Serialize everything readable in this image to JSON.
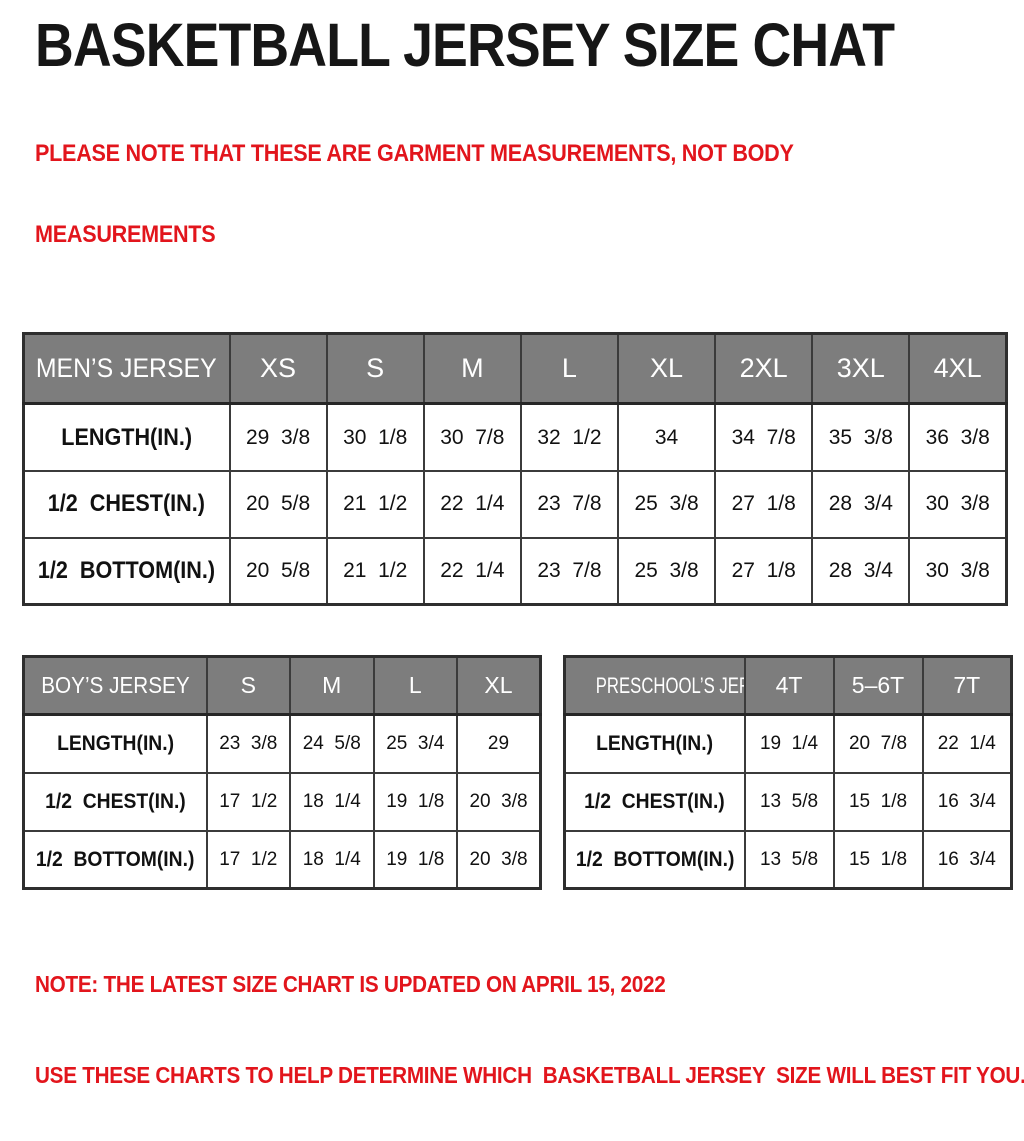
{
  "header": {
    "title": "BASKETBALL JERSEY SIZE CHAT",
    "subtitle_line1": "PLEASE NOTE THAT THESE ARE GARMENT MEASUREMENTS, NOT BODY",
    "subtitle_line2": "MEASUREMENTS"
  },
  "tables": {
    "mens": {
      "header": [
        "MEN’S JERSEY",
        "XS",
        "S",
        "M",
        "L",
        "XL",
        "2XL",
        "3XL",
        "4XL"
      ],
      "rows": [
        {
          "label": "LENGTH(IN.)",
          "values": [
            "29  3/8",
            "30  1/8",
            "30  7/8",
            "32  1/2",
            "34",
            "34  7/8",
            "35  3/8",
            "36  3/8"
          ]
        },
        {
          "label": "1/2  CHEST(IN.)",
          "values": [
            "20  5/8",
            "21  1/2",
            "22  1/4",
            "23  7/8",
            "25  3/8",
            "27  1/8",
            "28  3/4",
            "30  3/8"
          ]
        },
        {
          "label": "1/2  BOTTOM(IN.)",
          "values": [
            "20  5/8",
            "21  1/2",
            "22  1/4",
            "23  7/8",
            "25  3/8",
            "27  1/8",
            "28  3/4",
            "30  3/8"
          ]
        }
      ]
    },
    "boys": {
      "header": [
        "BOY’S JERSEY",
        "S",
        "M",
        "L",
        "XL"
      ],
      "rows": [
        {
          "label": "LENGTH(IN.)",
          "values": [
            "23  3/8",
            "24  5/8",
            "25  3/4",
            "29"
          ]
        },
        {
          "label": "1/2  CHEST(IN.)",
          "values": [
            "17  1/2",
            "18  1/4",
            "19  1/8",
            "20  3/8"
          ]
        },
        {
          "label": "1/2  BOTTOM(IN.)",
          "values": [
            "17  1/2",
            "18  1/4",
            "19  1/8",
            "20  3/8"
          ]
        }
      ]
    },
    "preschool": {
      "header": [
        "PRESCHOOL’S JERSEY",
        "4T",
        "5–6T",
        "7T"
      ],
      "rows": [
        {
          "label": "LENGTH(IN.)",
          "values": [
            "19  1/4",
            "20  7/8",
            "22  1/4"
          ]
        },
        {
          "label": "1/2  CHEST(IN.)",
          "values": [
            "13  5/8",
            "15  1/8",
            "16  3/4"
          ]
        },
        {
          "label": "1/2  BOTTOM(IN.)",
          "values": [
            "13  5/8",
            "15  1/8",
            "16  3/4"
          ]
        }
      ]
    }
  },
  "footer": {
    "note_line1": "NOTE: THE LATEST SIZE CHART IS UPDATED ON APRIL 15, 2022",
    "note_line2": "USE THESE CHARTS TO HELP DETERMINE WHICH  BASKETBALL JERSEY  SIZE WILL BEST FIT YOU."
  },
  "colors": {
    "accent_red": "#e2151c",
    "header_gray": "#7d7d7d",
    "grid_border": "#3b3b3b",
    "text_black": "#111111",
    "background": "#ffffff"
  }
}
